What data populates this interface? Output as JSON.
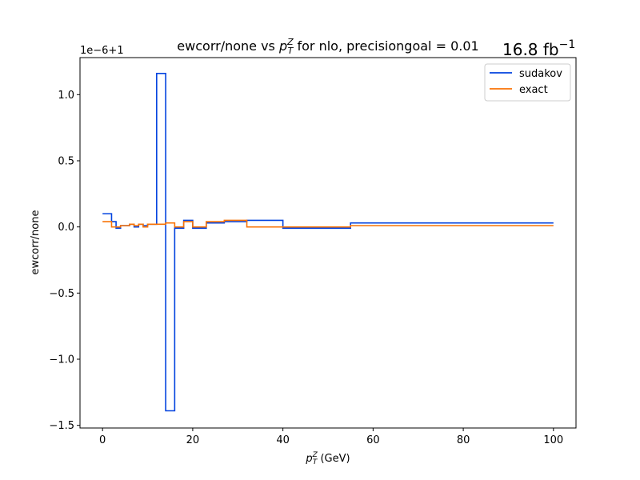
{
  "chart_data": {
    "type": "line",
    "drawstyle": "steps-post",
    "title": "ewcorr/none vs p_T^Z for nlo, precisiongoal = 0.01",
    "title_parts": {
      "prefix": "ewcorr/none vs ",
      "var": "p",
      "sub": "T",
      "sup": "Z",
      "suffix": " for nlo, precisiongoal = 0.01"
    },
    "lumi_label": {
      "value": "16.8 fb",
      "sup": "−1"
    },
    "xlabel": {
      "var": "p",
      "sub": "T",
      "sup": "Z",
      "unit": " (GeV)"
    },
    "ylabel": "ewcorr/none",
    "offset_text": "1e−6+1",
    "y_units": "1e-6 offset from 1",
    "xlim": [
      -5,
      105
    ],
    "ylim": [
      -1.52,
      1.28
    ],
    "xticks": [
      0,
      20,
      40,
      60,
      80,
      100
    ],
    "xtick_labels": [
      "0",
      "20",
      "40",
      "60",
      "80",
      "100"
    ],
    "yticks": [
      -1.5,
      -1.0,
      -0.5,
      0.0,
      0.5,
      1.0
    ],
    "ytick_labels": [
      "−1.5",
      "−1.0",
      "−0.5",
      "0.0",
      "0.5",
      "1.0"
    ],
    "grid": false,
    "legend_position": "top-right",
    "series": [
      {
        "name": "sudakov",
        "color": "#0343df",
        "x": [
          0,
          2,
          3,
          4,
          5,
          6,
          7,
          8,
          9,
          10,
          12,
          14,
          16,
          18,
          20,
          23,
          27,
          32,
          40,
          55,
          100
        ],
        "y": [
          0.1,
          0.04,
          -0.01,
          0.01,
          0.01,
          0.02,
          0.0,
          0.02,
          0.01,
          0.02,
          1.16,
          -1.39,
          -0.01,
          0.05,
          -0.01,
          0.03,
          0.04,
          0.05,
          -0.01,
          0.03,
          0.03
        ]
      },
      {
        "name": "exact",
        "color": "#f97306",
        "x": [
          0,
          2,
          3,
          4,
          5,
          6,
          7,
          8,
          9,
          10,
          12,
          14,
          16,
          18,
          20,
          23,
          27,
          32,
          40,
          55,
          100
        ],
        "y": [
          0.04,
          0.0,
          0.0,
          0.01,
          0.01,
          0.02,
          0.01,
          0.02,
          0.0,
          0.02,
          0.02,
          0.03,
          0.0,
          0.04,
          0.0,
          0.04,
          0.05,
          0.0,
          0.0,
          0.01,
          0.01
        ]
      }
    ]
  }
}
